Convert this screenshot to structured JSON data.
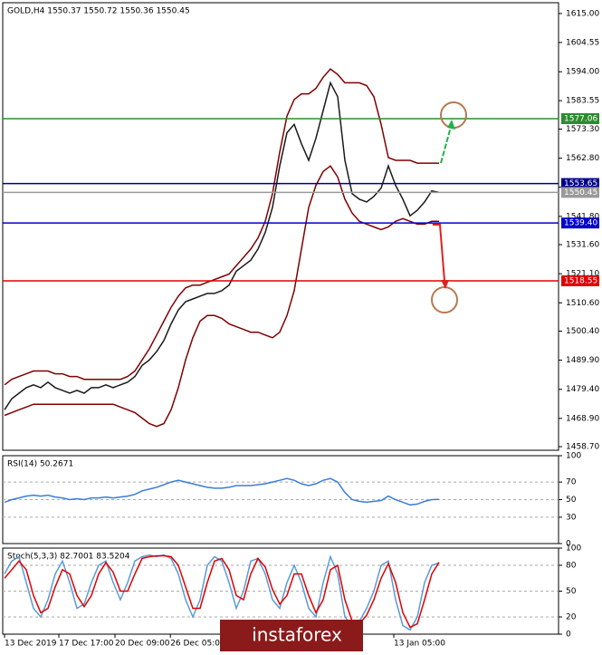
{
  "chart_data": [
    {
      "type": "line",
      "title": "GOLD,H4  1550.37 1550.72 1550.36 1550.45",
      "xlim": [
        -0.25,
        76.5
      ],
      "ylim": [
        1457.4,
        1618.9
      ],
      "yticks": [
        {
          "value": 1615,
          "label": "1615.00"
        },
        1604.55,
        {
          "value": 1594,
          "label": "1594.00"
        },
        1583.55,
        {
          "value": 1573.3,
          "label": "1573.30"
        },
        {
          "value": 1562.8,
          "label": "1562.80"
        },
        1552.35,
        {
          "value": 1541.8,
          "label": "1541.80"
        },
        {
          "value": 1531.6,
          "label": "1531.60"
        },
        {
          "value": 1521.1,
          "label": "1521.10"
        },
        {
          "value": 1510.6,
          "label": "1510.60"
        },
        {
          "value": 1500.4,
          "label": "1500.40"
        },
        {
          "value": 1489.9,
          "label": "1489.90"
        },
        {
          "value": 1479.4,
          "label": "1479.40"
        },
        {
          "value": 1468.9,
          "label": "1468.90"
        },
        {
          "value": 1458.7,
          "label": "1458.70"
        }
      ],
      "grid": false,
      "levels": [
        {
          "value": 1577.06,
          "color": "#2e8b2e"
        },
        {
          "value": 1553.65,
          "color": "#00008b"
        },
        {
          "value": 1550.45,
          "color": "#9a9a9a"
        },
        {
          "value": 1539.4,
          "label": "1539.40",
          "color": "#0000cd"
        },
        {
          "value": 1518.55,
          "color": "#e00000"
        }
      ],
      "series": [
        {
          "color": "#7f0000",
          "values": [
            1481,
            1483,
            1484,
            1485,
            1486,
            1486,
            1486,
            1485,
            1485,
            1484,
            1484,
            1483,
            1483,
            1483,
            1483,
            1483,
            1483,
            1484,
            1486,
            1490,
            1494,
            1499,
            1504,
            1509,
            1513,
            1516,
            1517,
            1517,
            1518,
            1519,
            1520,
            1521,
            1524,
            1527,
            1530,
            1534,
            1540,
            1550,
            1565,
            1578,
            1584,
            1586,
            1586,
            1588,
            1592,
            1595,
            1593,
            1590,
            1590,
            1590,
            1589,
            1585,
            1575,
            1563,
            1562,
            1562,
            1562,
            1561,
            1561,
            1561,
            1561
          ]
        },
        {
          "color": "#7f0000",
          "values": [
            1470,
            1471,
            1472,
            1473,
            1474,
            1474,
            1474,
            1474,
            1474,
            1474,
            1474,
            1474,
            1474,
            1474,
            1474,
            1474,
            1473,
            1472,
            1471,
            1469,
            1467,
            1466,
            1467,
            1472,
            1480,
            1490,
            1498,
            1504,
            1506,
            1506,
            1505,
            1503,
            1502,
            1501,
            1500,
            1500,
            1499,
            1498,
            1500,
            1506,
            1515,
            1530,
            1545,
            1553,
            1558,
            1560,
            1556,
            1548,
            1543,
            1540,
            1539,
            1538,
            1537,
            1538,
            1540,
            1541,
            1540,
            1539,
            1539,
            1540,
            1540
          ]
        },
        {
          "color": "#1a1a1a",
          "values": [
            1472,
            1476,
            1478,
            1480,
            1481,
            1480,
            1482,
            1480,
            1479,
            1478,
            1479,
            1478,
            1480,
            1480,
            1481,
            1480,
            1481,
            1482,
            1484,
            1488,
            1490,
            1493,
            1497,
            1503,
            1508,
            1511,
            1512,
            1513,
            1514,
            1514,
            1515,
            1517,
            1522,
            1524,
            1526,
            1530,
            1536,
            1545,
            1560,
            1572,
            1575,
            1568,
            1562,
            1570,
            1580,
            1590,
            1585,
            1562,
            1550,
            1548,
            1547,
            1549,
            1552,
            1560,
            1553,
            1548,
            1542,
            1544,
            1547,
            1551,
            1550.45
          ]
        }
      ]
    },
    {
      "type": "line",
      "title": "RSI(14) 50.2671",
      "xlim": [
        -0.25,
        76.5
      ],
      "ylim": [
        0,
        100
      ],
      "yticks": [
        100,
        70,
        50,
        30,
        0
      ],
      "grid": true,
      "series": [
        {
          "color": "#3b7dd8",
          "values": [
            47,
            50,
            52,
            54,
            55,
            54,
            55,
            53,
            52,
            50,
            51,
            50,
            52,
            52,
            53,
            52,
            53,
            54,
            56,
            60,
            62,
            64,
            67,
            70,
            72,
            70,
            68,
            66,
            64,
            63,
            63,
            64,
            66,
            66,
            66,
            67,
            68,
            70,
            72,
            74,
            72,
            68,
            66,
            68,
            72,
            74,
            70,
            58,
            50,
            48,
            47,
            48,
            49,
            54,
            50,
            47,
            44,
            45,
            48,
            50,
            50.2671
          ]
        }
      ]
    },
    {
      "type": "line",
      "title": "Stoch(5,3,3) 82.7001 83.5204",
      "xlim": [
        -0.25,
        76.5
      ],
      "ylim": [
        0,
        100
      ],
      "yticks": [
        100,
        80,
        50,
        20,
        0
      ],
      "grid": true,
      "xticks": [
        {
          "value": 0,
          "label": "13 Dec 2019"
        },
        {
          "value": 7.5,
          "label": "17 Dec 17:00"
        },
        {
          "value": 15.25,
          "label": "20 Dec 09:00"
        },
        {
          "value": 22.9,
          "label": "26 Dec 05:00"
        },
        {
          "value": 53.75,
          "label": "13 Jan 05:00"
        }
      ],
      "series": [
        {
          "color": "#5b9bd5",
          "values": [
            70,
            85,
            90,
            60,
            30,
            20,
            40,
            70,
            85,
            60,
            30,
            35,
            60,
            80,
            85,
            60,
            40,
            60,
            85,
            90,
            92,
            90,
            92,
            88,
            70,
            40,
            20,
            40,
            80,
            90,
            85,
            60,
            30,
            50,
            85,
            88,
            70,
            40,
            30,
            60,
            80,
            60,
            30,
            20,
            60,
            90,
            70,
            20,
            10,
            15,
            30,
            50,
            80,
            85,
            40,
            10,
            5,
            20,
            60,
            80,
            82.7001
          ]
        },
        {
          "color": "#e00000",
          "values": [
            65,
            75,
            85,
            75,
            45,
            25,
            30,
            55,
            75,
            70,
            45,
            32,
            45,
            70,
            83,
            72,
            50,
            50,
            70,
            88,
            90,
            91,
            91,
            90,
            80,
            55,
            30,
            30,
            60,
            85,
            88,
            75,
            45,
            40,
            70,
            88,
            78,
            52,
            35,
            45,
            70,
            70,
            45,
            25,
            40,
            75,
            80,
            40,
            15,
            12,
            22,
            40,
            65,
            82,
            60,
            25,
            8,
            12,
            40,
            70,
            83.5204
          ]
        }
      ]
    }
  ],
  "watermark": "instaforex"
}
